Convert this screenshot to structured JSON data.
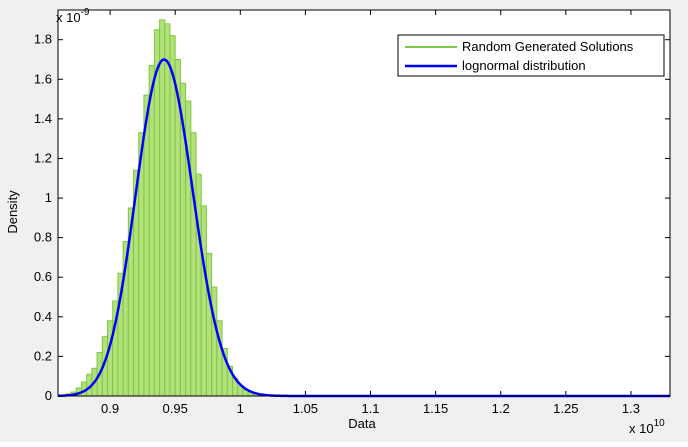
{
  "chart_data": {
    "type": "histogram",
    "xlabel": "Data",
    "ylabel": "Density",
    "x_exponent_label": "x 10",
    "x_exponent_power": "10",
    "y_exponent_label": "x 10",
    "y_exponent_power": "-9",
    "xlim": [
      0.86,
      1.33
    ],
    "ylim": [
      0,
      1.95
    ],
    "x_ticks": [
      "0.9",
      "0.95",
      "1",
      "1.05",
      "1.1",
      "1.15",
      "1.2",
      "1.25",
      "1.3"
    ],
    "y_ticks": [
      "0",
      "0.2",
      "0.4",
      "0.6",
      "0.8",
      "1",
      "1.2",
      "1.4",
      "1.6",
      "1.8"
    ],
    "legend_position": "top-right",
    "series": [
      {
        "name": "Random Generated Solutions",
        "kind": "histogram",
        "color": "#7ac943",
        "bin_width": 0.004,
        "x": [
          0.868,
          0.872,
          0.876,
          0.88,
          0.884,
          0.888,
          0.892,
          0.896,
          0.9,
          0.904,
          0.908,
          0.912,
          0.916,
          0.92,
          0.924,
          0.928,
          0.932,
          0.936,
          0.94,
          0.944,
          0.948,
          0.952,
          0.956,
          0.96,
          0.964,
          0.968,
          0.972,
          0.976,
          0.98,
          0.984,
          0.988,
          0.992,
          0.996,
          1.0,
          1.004,
          1.008,
          1.012,
          1.016,
          1.02,
          1.024
        ],
        "values": [
          0.01,
          0.02,
          0.04,
          0.07,
          0.11,
          0.14,
          0.22,
          0.3,
          0.38,
          0.48,
          0.62,
          0.78,
          0.95,
          1.14,
          1.33,
          1.52,
          1.67,
          1.85,
          1.9,
          1.88,
          1.82,
          1.7,
          1.58,
          1.49,
          1.33,
          1.12,
          0.96,
          0.72,
          0.55,
          0.38,
          0.24,
          0.15,
          0.09,
          0.05,
          0.03,
          0.02,
          0.01,
          0.01,
          0.005,
          0.003
        ]
      },
      {
        "name": "lognormal distribution",
        "kind": "line",
        "color": "#0000ff",
        "peak_x": 0.9415,
        "peak_y": 1.7,
        "sigma": 0.0232
      }
    ]
  }
}
